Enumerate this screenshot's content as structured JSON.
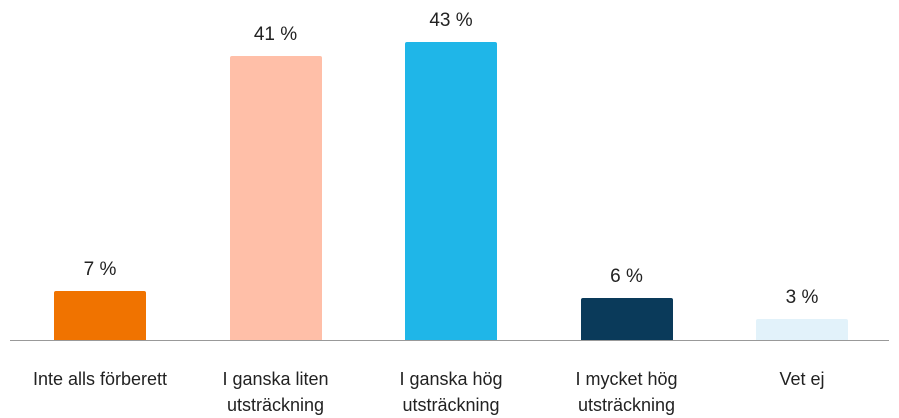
{
  "chart_data": {
    "type": "bar",
    "categories": [
      "Inte alls förberett",
      "I ganska liten utsträckning",
      "I ganska hög utsträckning",
      "I mycket hög utsträckning",
      "Vet ej"
    ],
    "values": [
      7,
      41,
      43,
      6,
      3
    ],
    "value_labels": [
      "7 %",
      "41 %",
      "43 %",
      "6 %",
      "3 %"
    ],
    "colors": [
      "#f07300",
      "#ffbfa8",
      "#1fb6e8",
      "#0a3a5a",
      "#e2f2fa"
    ]
  }
}
